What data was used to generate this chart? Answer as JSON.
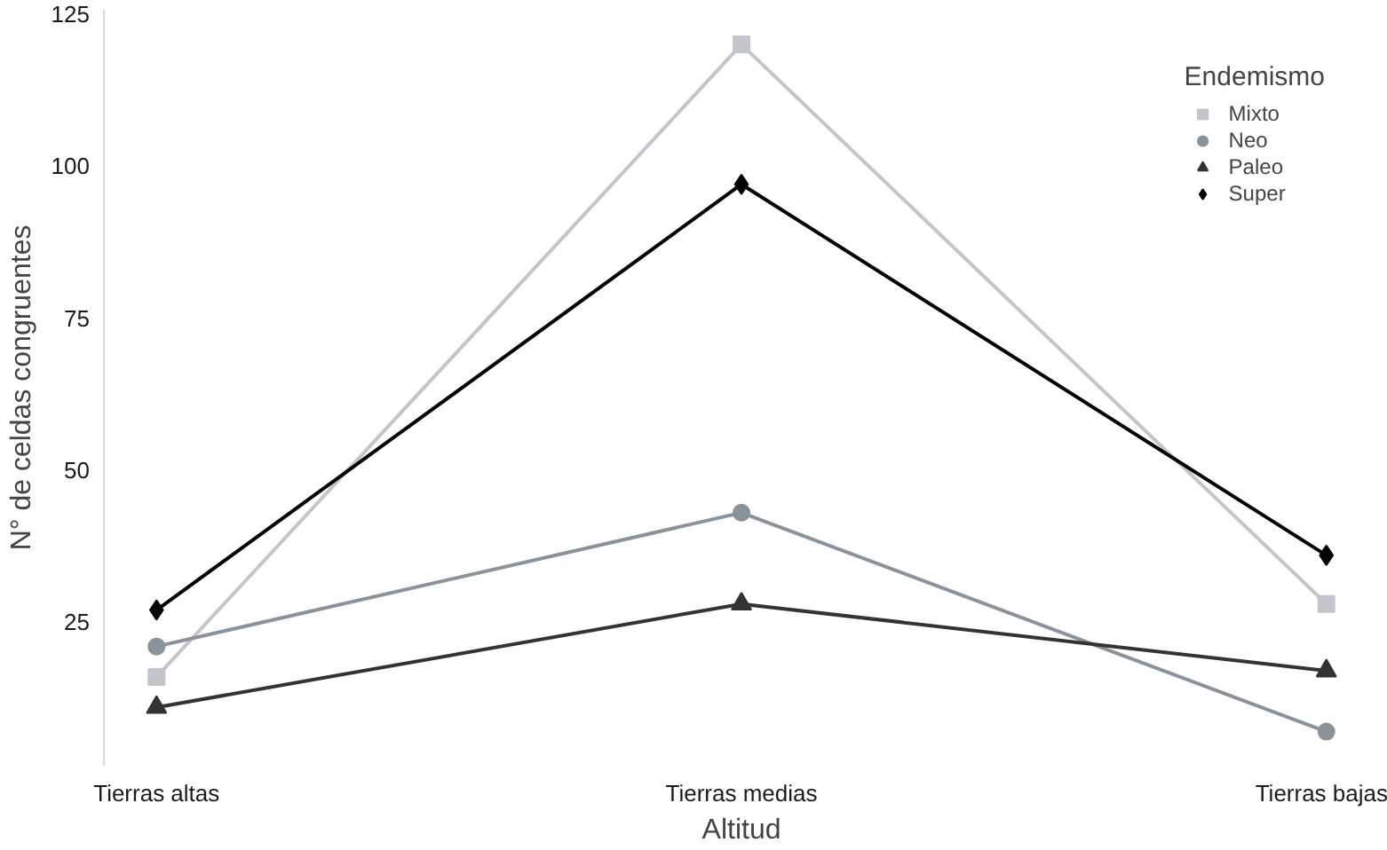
{
  "chart_data": {
    "type": "line",
    "xlabel": "Altitud",
    "ylabel": "N° de celdas congruentes",
    "legend_title": "Endemismo",
    "legend": "top right",
    "grid": false,
    "categories": [
      "Tierras altas",
      "Tierras medias",
      "Tierras bajas"
    ],
    "ylim": [
      1.4,
      125.7
    ],
    "yticks": [
      25,
      50,
      75,
      100,
      125
    ],
    "series": [
      {
        "name": "Mixto",
        "color": "#c2c6ca",
        "marker": "square",
        "values": [
          16,
          120,
          28
        ]
      },
      {
        "name": "Neo",
        "color": "#8a929a",
        "marker": "circle",
        "values": [
          21,
          43,
          7
        ]
      },
      {
        "name": "Paleo",
        "color": "#333333",
        "marker": "triangle",
        "values": [
          11,
          28,
          17
        ]
      },
      {
        "name": "Super",
        "color": "#000000",
        "marker": "diamond",
        "values": [
          27,
          97,
          36
        ]
      }
    ]
  }
}
